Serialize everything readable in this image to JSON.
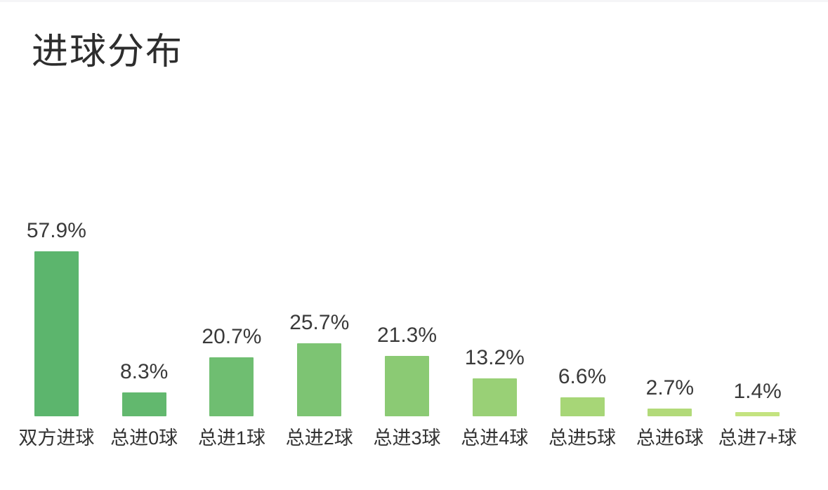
{
  "page": {
    "background": "#ffffff"
  },
  "chart_data": {
    "type": "bar",
    "title": "进球分布",
    "categories": [
      "双方进球",
      "总进0球",
      "总进1球",
      "总进2球",
      "总进3球",
      "总进4球",
      "总进5球",
      "总进6球",
      "总进7+球"
    ],
    "values": [
      57.9,
      8.3,
      20.7,
      25.7,
      21.3,
      13.2,
      6.6,
      2.7,
      1.4
    ],
    "value_labels": [
      "57.9%",
      "8.3%",
      "20.7%",
      "25.7%",
      "21.3%",
      "13.2%",
      "6.6%",
      "2.7%",
      "1.4%"
    ],
    "unit": "%",
    "bar_colors": [
      "#5cb56d",
      "#62b86e",
      "#6fbe71",
      "#7dc473",
      "#8bca74",
      "#99d076",
      "#a7d677",
      "#b2da79",
      "#c4e380"
    ],
    "xlabel": "",
    "ylabel": "",
    "ylim": [
      0,
      60
    ],
    "grid": false,
    "legend": null,
    "orientation": "vertical",
    "value_label_position": "above-bar",
    "category_label_position": "below-bar"
  }
}
